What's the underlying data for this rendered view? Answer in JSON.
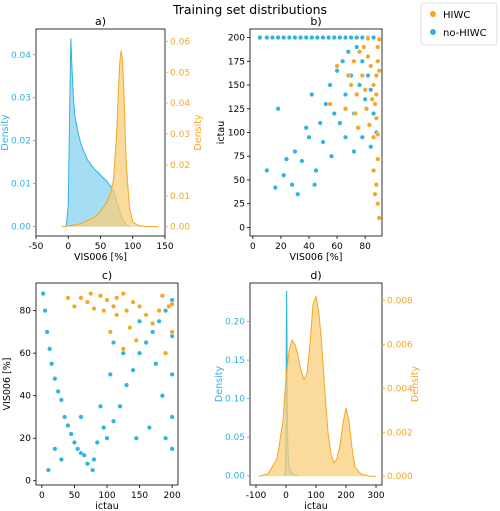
{
  "figure_title": "Training set distributions",
  "colors": {
    "hiwc": "#f5a623",
    "no_hiwc": "#2fb3df",
    "hiwc_fill": "#f9cf7a",
    "no_hiwc_fill": "#87d3f0"
  },
  "legend": {
    "position": "top-right",
    "entries": [
      {
        "label": "HIWC",
        "color": "#f5a623"
      },
      {
        "label": "no-HIWC",
        "color": "#2fb3df"
      }
    ]
  },
  "chart_data": [
    {
      "panel": "a)",
      "type": "area",
      "xlabel": "VIS006 [%]",
      "xlim": [
        -50,
        150
      ],
      "xticks": [
        -50,
        0,
        50,
        100,
        150
      ],
      "ylabel_left": "Density",
      "ylim_left": [
        -0.0022,
        0.046
      ],
      "yticks_left": [
        "0.00",
        "0.01",
        "0.02",
        "0.03",
        "0.04"
      ],
      "ylabel_right": "Density",
      "ylim_right": [
        -0.003,
        0.064
      ],
      "yticks_right": [
        "0.00",
        "0.01",
        "0.02",
        "0.03",
        "0.04",
        "0.05",
        "0.06"
      ],
      "series": [
        {
          "name": "no-HIWC",
          "axis": "left",
          "x": [
            -3,
            0,
            2,
            4,
            6,
            8,
            10,
            15,
            20,
            30,
            40,
            50,
            60,
            70,
            75,
            80,
            85,
            90,
            95
          ],
          "y": [
            0,
            0.005,
            0.025,
            0.0438,
            0.036,
            0.03,
            0.026,
            0.022,
            0.019,
            0.0155,
            0.0135,
            0.012,
            0.0105,
            0.0085,
            0.006,
            0.0035,
            0.0015,
            0.0004,
            0
          ]
        },
        {
          "name": "HIWC",
          "axis": "right",
          "x": [
            -10,
            0,
            20,
            40,
            50,
            60,
            65,
            70,
            75,
            78,
            80,
            82,
            84,
            86,
            88,
            90,
            95,
            100,
            110,
            120,
            140
          ],
          "y": [
            0,
            0.0002,
            0.001,
            0.003,
            0.005,
            0.008,
            0.0105,
            0.015,
            0.03,
            0.045,
            0.0535,
            0.057,
            0.054,
            0.045,
            0.032,
            0.02,
            0.006,
            0.0015,
            0.0003,
            0.0001,
            0
          ]
        }
      ]
    },
    {
      "panel": "b)",
      "type": "scatter",
      "xlabel": "VIS006 [%]",
      "ylabel": "ictau",
      "xlim": [
        -2,
        92
      ],
      "ylim": [
        -9,
        209
      ],
      "xticks": [
        0,
        20,
        40,
        60,
        80
      ],
      "yticks": [
        0,
        25,
        50,
        75,
        100,
        125,
        150,
        175,
        200
      ],
      "series": [
        {
          "name": "no-HIWC",
          "points": [
            [
              5,
              200
            ],
            [
              10,
              200
            ],
            [
              14,
              200
            ],
            [
              18,
              200
            ],
            [
              22,
              200
            ],
            [
              26,
              200
            ],
            [
              30,
              200
            ],
            [
              34,
              200
            ],
            [
              38,
              200
            ],
            [
              42,
              200
            ],
            [
              46,
              200
            ],
            [
              50,
              200
            ],
            [
              54,
              200
            ],
            [
              58,
              200
            ],
            [
              62,
              200
            ],
            [
              66,
              200
            ],
            [
              70,
              200
            ],
            [
              74,
              200
            ],
            [
              78,
              200
            ],
            [
              82,
              200
            ],
            [
              86,
              200
            ],
            [
              10,
              60
            ],
            [
              16,
              42
            ],
            [
              22,
              55
            ],
            [
              28,
              45
            ],
            [
              30,
              80
            ],
            [
              18,
              125
            ],
            [
              35,
              70
            ],
            [
              38,
              105
            ],
            [
              40,
              95
            ],
            [
              42,
              140
            ],
            [
              45,
              60
            ],
            [
              48,
              110
            ],
            [
              50,
              90
            ],
            [
              52,
              130
            ],
            [
              55,
              150
            ],
            [
              58,
              120
            ],
            [
              60,
              165
            ],
            [
              62,
              110
            ],
            [
              64,
              175
            ],
            [
              66,
              140
            ],
            [
              68,
              185
            ],
            [
              70,
              160
            ],
            [
              72,
              120
            ],
            [
              74,
              190
            ],
            [
              76,
              150
            ],
            [
              78,
              175
            ],
            [
              80,
              135
            ],
            [
              82,
              160
            ],
            [
              84,
              145
            ],
            [
              86,
              120
            ],
            [
              88,
              100
            ],
            [
              24,
              72
            ],
            [
              32,
              35
            ],
            [
              44,
              45
            ],
            [
              56,
              75
            ],
            [
              66,
              95
            ],
            [
              72,
              80
            ],
            [
              78,
              95
            ],
            [
              84,
              85
            ]
          ]
        },
        {
          "name": "HIWC",
          "points": [
            [
              60,
              170
            ],
            [
              66,
              125
            ],
            [
              70,
              150
            ],
            [
              74,
              140
            ],
            [
              76,
              185
            ],
            [
              78,
              160
            ],
            [
              80,
              145
            ],
            [
              82,
              180
            ],
            [
              84,
              170
            ],
            [
              86,
              150
            ],
            [
              88,
              160
            ],
            [
              89,
              175
            ],
            [
              87,
              130
            ],
            [
              88,
              115
            ],
            [
              85,
              135
            ],
            [
              72,
              175
            ],
            [
              79,
              190
            ],
            [
              81,
              125
            ],
            [
              83,
              108
            ],
            [
              86,
              95
            ],
            [
              88,
              140
            ],
            [
              89,
              98
            ],
            [
              73,
              120
            ],
            [
              68,
              160
            ],
            [
              55,
              130
            ],
            [
              75,
              105
            ],
            [
              89,
              190
            ],
            [
              90,
              165
            ],
            [
              88,
              45
            ],
            [
              87,
              35
            ],
            [
              89,
              25
            ],
            [
              90,
              10
            ],
            [
              86,
              60
            ],
            [
              89,
              72
            ],
            [
              90,
              198
            ],
            [
              82,
              199
            ]
          ]
        }
      ]
    },
    {
      "panel": "c)",
      "type": "scatter",
      "xlabel": "ictau",
      "ylabel": "VIS006 [%]",
      "xlim": [
        -9,
        209
      ],
      "ylim": [
        -2,
        93
      ],
      "xticks": [
        0,
        50,
        100,
        150,
        200
      ],
      "yticks": [
        0,
        20,
        40,
        60,
        80
      ],
      "series": [
        {
          "name": "no-HIWC",
          "points": [
            [
              2,
              88
            ],
            [
              5,
              80
            ],
            [
              8,
              70
            ],
            [
              12,
              62
            ],
            [
              15,
              55
            ],
            [
              20,
              48
            ],
            [
              25,
              42
            ],
            [
              30,
              38
            ],
            [
              35,
              30
            ],
            [
              40,
              26
            ],
            [
              45,
              22
            ],
            [
              50,
              18
            ],
            [
              55,
              15
            ],
            [
              60,
              13
            ],
            [
              65,
              12
            ],
            [
              70,
              8
            ],
            [
              78,
              5
            ],
            [
              85,
              18
            ],
            [
              95,
              25
            ],
            [
              100,
              20
            ],
            [
              110,
              28
            ],
            [
              120,
              35
            ],
            [
              130,
              45
            ],
            [
              140,
              52
            ],
            [
              150,
              60
            ],
            [
              160,
              65
            ],
            [
              170,
              70
            ],
            [
              180,
              75
            ],
            [
              190,
              80
            ],
            [
              200,
              85
            ],
            [
              200,
              50
            ],
            [
              200,
              30
            ],
            [
              200,
              15
            ],
            [
              185,
              40
            ],
            [
              175,
              55
            ],
            [
              165,
              25
            ],
            [
              145,
              20
            ],
            [
              125,
              60
            ],
            [
              105,
              50
            ],
            [
              90,
              35
            ],
            [
              80,
              10
            ],
            [
              60,
              30
            ],
            [
              10,
              5
            ],
            [
              20,
              15
            ],
            [
              30,
              10
            ],
            [
              150,
              75
            ],
            [
              110,
              65
            ],
            [
              190,
              20
            ],
            [
              200,
              68
            ]
          ]
        },
        {
          "name": "HIWC",
          "points": [
            [
              40,
              86
            ],
            [
              50,
              82
            ],
            [
              60,
              86
            ],
            [
              70,
              84
            ],
            [
              80,
              81
            ],
            [
              90,
              87
            ],
            [
              100,
              85
            ],
            [
              110,
              82
            ],
            [
              115,
              86
            ],
            [
              125,
              88
            ],
            [
              130,
              80
            ],
            [
              135,
              72
            ],
            [
              140,
              84
            ],
            [
              150,
              82
            ],
            [
              160,
              78
            ],
            [
              170,
              74
            ],
            [
              185,
              87
            ],
            [
              195,
              82
            ],
            [
              105,
              70
            ],
            [
              125,
              62
            ],
            [
              145,
              66
            ],
            [
              190,
              60
            ],
            [
              200,
              70
            ],
            [
              200,
              83
            ],
            [
              75,
              88
            ],
            [
              95,
              80
            ],
            [
              115,
              78
            ],
            [
              180,
              80
            ]
          ]
        }
      ]
    },
    {
      "panel": "d)",
      "type": "area",
      "xlabel": "ictau",
      "xlim": [
        -120,
        320
      ],
      "xticks": [
        -100,
        0,
        100,
        200,
        300
      ],
      "ylabel_left": "Density",
      "ylim_left": [
        -0.012,
        0.25
      ],
      "yticks_left": [
        "0.00",
        "0.05",
        "0.10",
        "0.15",
        "0.20"
      ],
      "ylabel_right": "Density",
      "ylim_right": [
        -0.0004,
        0.0088
      ],
      "yticks_right": [
        "0.000",
        "0.002",
        "0.004",
        "0.006",
        "0.008"
      ],
      "series": [
        {
          "name": "no-HIWC",
          "axis": "left",
          "x": [
            -6,
            -2,
            0,
            1,
            2,
            3,
            4,
            5,
            6,
            8,
            12,
            20,
            40
          ],
          "y": [
            0,
            0.01,
            0.08,
            0.18,
            0.24,
            0.2,
            0.13,
            0.07,
            0.04,
            0.02,
            0.008,
            0.003,
            0
          ]
        },
        {
          "name": "HIWC",
          "axis": "right",
          "x": [
            -90,
            -60,
            -30,
            -10,
            0,
            10,
            20,
            30,
            40,
            50,
            60,
            70,
            80,
            90,
            100,
            110,
            120,
            130,
            140,
            150,
            160,
            170,
            180,
            190,
            200,
            210,
            220,
            230,
            250,
            280,
            300
          ],
          "y": [
            0,
            0.0001,
            0.0008,
            0.0025,
            0.0045,
            0.0057,
            0.0062,
            0.006,
            0.0055,
            0.0048,
            0.0044,
            0.0047,
            0.006,
            0.0078,
            0.0082,
            0.0074,
            0.0058,
            0.0038,
            0.002,
            0.001,
            0.0006,
            0.0008,
            0.0014,
            0.0024,
            0.0031,
            0.0025,
            0.0013,
            0.0004,
            0.0001,
            0,
            0
          ]
        }
      ]
    }
  ]
}
